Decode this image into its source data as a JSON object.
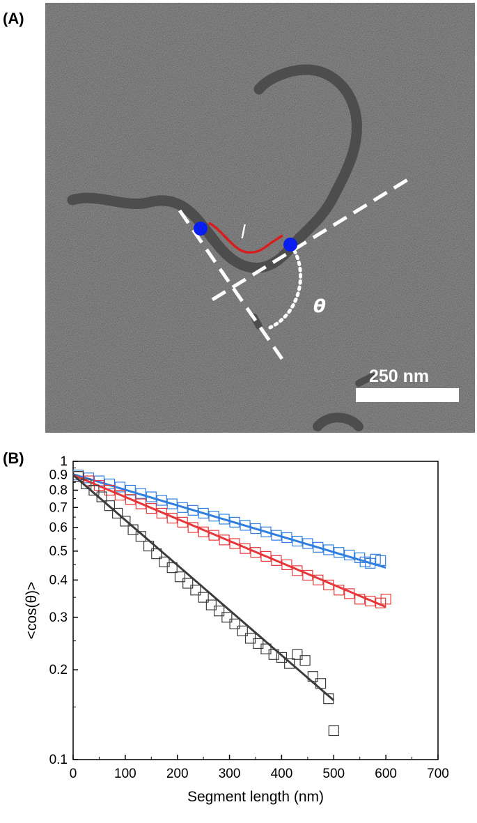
{
  "panel_a": {
    "label": "(A)",
    "scale_bar_label": "250 nm",
    "segment_label": "l",
    "angle_label": "θ",
    "colors": {
      "contour": "#d71d1d",
      "endpoint": "#0a1ef0",
      "construction": "#ffffff",
      "background": "#8d8d8d",
      "fiber": "#4a4a4a"
    }
  },
  "panel_b": {
    "label": "(B)"
  },
  "chart_data": {
    "type": "scatter",
    "xlabel": "Segment length (nm)",
    "ylabel": "<cos(θ)>",
    "xlim": [
      0,
      700
    ],
    "ylim": [
      0.1,
      1
    ],
    "y_scale": "log",
    "grid": false,
    "x_ticks": [
      0,
      100,
      200,
      300,
      400,
      500,
      600,
      700
    ],
    "y_ticks": [
      0.1,
      0.2,
      0.3,
      0.4,
      0.5,
      0.6,
      0.7,
      0.8,
      0.9,
      1
    ],
    "marker": "open-square",
    "series": [
      {
        "color": "#2f7ee0",
        "x": [
          10,
          30,
          50,
          70,
          90,
          110,
          130,
          150,
          170,
          190,
          210,
          230,
          250,
          270,
          290,
          310,
          330,
          350,
          370,
          390,
          410,
          430,
          450,
          470,
          490,
          510,
          530,
          550,
          560,
          570,
          580,
          590
        ],
        "y": [
          0.9,
          0.88,
          0.86,
          0.84,
          0.82,
          0.8,
          0.78,
          0.76,
          0.74,
          0.72,
          0.7,
          0.685,
          0.67,
          0.655,
          0.64,
          0.625,
          0.61,
          0.595,
          0.58,
          0.565,
          0.555,
          0.54,
          0.53,
          0.515,
          0.505,
          0.495,
          0.485,
          0.475,
          0.46,
          0.455,
          0.47,
          0.465
        ],
        "fit": {
          "x": [
            0,
            600
          ],
          "y": [
            0.905,
            0.44
          ]
        }
      },
      {
        "color": "#e8373a",
        "x": [
          10,
          30,
          50,
          70,
          90,
          110,
          130,
          150,
          170,
          190,
          210,
          230,
          250,
          270,
          290,
          310,
          330,
          350,
          370,
          390,
          410,
          430,
          450,
          470,
          490,
          510,
          530,
          550,
          570,
          590,
          600
        ],
        "y": [
          0.89,
          0.86,
          0.83,
          0.8,
          0.77,
          0.745,
          0.72,
          0.695,
          0.67,
          0.645,
          0.625,
          0.6,
          0.58,
          0.565,
          0.545,
          0.53,
          0.51,
          0.495,
          0.48,
          0.465,
          0.45,
          0.43,
          0.415,
          0.4,
          0.385,
          0.37,
          0.36,
          0.345,
          0.34,
          0.335,
          0.345
        ],
        "fit": {
          "x": [
            0,
            600
          ],
          "y": [
            0.9,
            0.325
          ]
        }
      },
      {
        "color": "#3c3c3c",
        "x": [
          10,
          25,
          40,
          55,
          70,
          85,
          100,
          115,
          130,
          145,
          160,
          175,
          190,
          205,
          220,
          235,
          250,
          265,
          280,
          295,
          310,
          325,
          340,
          355,
          370,
          385,
          400,
          415,
          430,
          445,
          460,
          475,
          490,
          500
        ],
        "y": [
          0.89,
          0.84,
          0.8,
          0.76,
          0.71,
          0.67,
          0.63,
          0.59,
          0.56,
          0.52,
          0.49,
          0.46,
          0.44,
          0.41,
          0.39,
          0.37,
          0.35,
          0.33,
          0.315,
          0.3,
          0.285,
          0.27,
          0.255,
          0.245,
          0.235,
          0.225,
          0.22,
          0.21,
          0.225,
          0.215,
          0.19,
          0.18,
          0.16,
          0.125
        ],
        "fit": {
          "x": [
            0,
            500
          ],
          "y": [
            0.9,
            0.158
          ]
        }
      }
    ]
  }
}
